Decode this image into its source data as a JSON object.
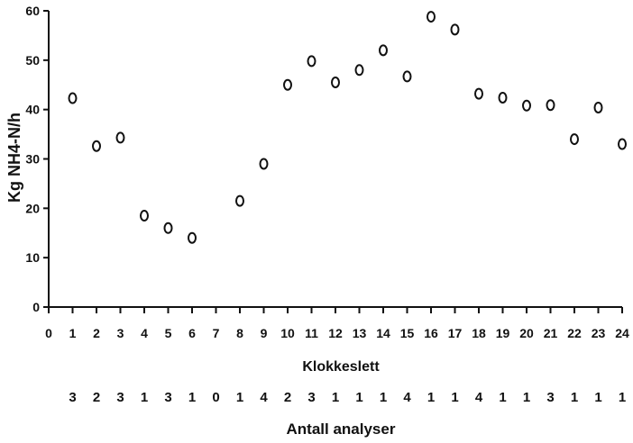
{
  "chart_data": {
    "type": "scatter",
    "title": "",
    "xlabel": "Klokkeslett",
    "ylabel": "Kg NH4-N/h",
    "xlim": [
      0,
      24
    ],
    "ylim": [
      0,
      60
    ],
    "x_ticks": [
      "0",
      "1",
      "2",
      "3",
      "4",
      "5",
      "6",
      "7",
      "8",
      "9",
      "10",
      "11",
      "12",
      "13",
      "14",
      "15",
      "16",
      "17",
      "18",
      "19",
      "20",
      "21",
      "22",
      "23",
      "24"
    ],
    "y_ticks": [
      "0",
      "10",
      "20",
      "30",
      "40",
      "50",
      "60"
    ],
    "grid": false,
    "legend": "none",
    "marker": "open-circle",
    "points": [
      {
        "x": 1,
        "y": 42.3
      },
      {
        "x": 2,
        "y": 32.6
      },
      {
        "x": 3,
        "y": 34.3
      },
      {
        "x": 4,
        "y": 18.5
      },
      {
        "x": 5,
        "y": 16.0
      },
      {
        "x": 6,
        "y": 14.0
      },
      {
        "x": 8,
        "y": 21.5
      },
      {
        "x": 9,
        "y": 29.0
      },
      {
        "x": 10,
        "y": 45.0
      },
      {
        "x": 11,
        "y": 49.8
      },
      {
        "x": 12,
        "y": 45.5
      },
      {
        "x": 13,
        "y": 48.0
      },
      {
        "x": 14,
        "y": 52.0
      },
      {
        "x": 15,
        "y": 46.7
      },
      {
        "x": 16,
        "y": 58.8
      },
      {
        "x": 17,
        "y": 56.2
      },
      {
        "x": 18,
        "y": 43.2
      },
      {
        "x": 19,
        "y": 42.4
      },
      {
        "x": 20,
        "y": 40.8
      },
      {
        "x": 21,
        "y": 40.9
      },
      {
        "x": 22,
        "y": 34.0
      },
      {
        "x": 23,
        "y": 40.4
      },
      {
        "x": 24,
        "y": 33.0
      }
    ],
    "analysis_counts": {
      "label": "Antall analyser",
      "values": [
        {
          "text": "3",
          "x": 1
        },
        {
          "text": "2",
          "x": 2
        },
        {
          "text": "3",
          "x": 3
        },
        {
          "text": "1",
          "x": 4
        },
        {
          "text": "3",
          "x": 5
        },
        {
          "text": "1",
          "x": 6
        },
        {
          "text": "0",
          "x": 7
        },
        {
          "text": "1",
          "x": 8
        },
        {
          "text": "4",
          "x": 9
        },
        {
          "text": "2",
          "x": 10
        },
        {
          "text": "3",
          "x": 11
        },
        {
          "text": "1",
          "x": 12
        },
        {
          "text": "1",
          "x": 13
        },
        {
          "text": "1",
          "x": 14
        },
        {
          "text": "4",
          "x": 15
        },
        {
          "text": "1",
          "x": 16
        },
        {
          "text": "1",
          "x": 17
        },
        {
          "text": "4",
          "x": 18
        },
        {
          "text": "1",
          "x": 19
        },
        {
          "text": "1",
          "x": 20
        },
        {
          "text": "3",
          "x": 21
        },
        {
          "text": "1",
          "x": 22
        },
        {
          "text": "1",
          "x": 23
        },
        {
          "text": "1",
          "x": 24
        }
      ]
    },
    "colors": {
      "axis": "#111111",
      "marker": "#111111",
      "background": "#ffffff"
    }
  }
}
